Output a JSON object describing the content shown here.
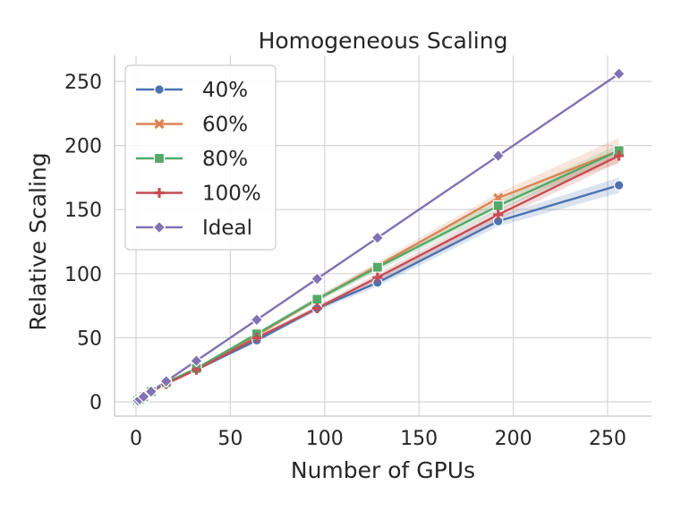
{
  "chart_data": {
    "type": "line",
    "title": "Homogeneous Scaling",
    "xlabel": "Number of GPUs",
    "ylabel": "Relative Scaling",
    "xlim": [
      -6,
      266
    ],
    "ylim": [
      -12,
      270
    ],
    "xticks": [
      0,
      50,
      100,
      150,
      200,
      250
    ],
    "yticks": [
      0,
      50,
      100,
      150,
      200,
      250
    ],
    "grid": true,
    "legend_position": "top-left",
    "series": [
      {
        "name": "40%",
        "color": "#4c72b0",
        "marker": "circle",
        "x": [
          1,
          2,
          4,
          8,
          16,
          32,
          64,
          96,
          128,
          192,
          256
        ],
        "values": [
          1,
          2,
          4,
          8,
          15,
          25,
          48,
          73,
          93,
          141,
          169
        ],
        "ci": [
          0,
          0,
          0,
          0.3,
          0.5,
          1,
          1.5,
          2,
          3,
          4,
          6
        ]
      },
      {
        "name": "60%",
        "color": "#dd8452",
        "marker": "x",
        "x": [
          1,
          2,
          4,
          8,
          16,
          32,
          64,
          96,
          128,
          192,
          256
        ],
        "values": [
          1,
          2,
          4,
          8,
          15,
          26,
          52,
          80,
          106,
          159,
          196
        ],
        "ci": [
          0,
          0,
          0,
          0.3,
          0.5,
          1,
          1.5,
          2,
          3,
          4,
          10
        ]
      },
      {
        "name": "80%",
        "color": "#55a868",
        "marker": "square",
        "x": [
          1,
          2,
          4,
          8,
          16,
          32,
          64,
          96,
          128,
          192,
          256
        ],
        "values": [
          1,
          2,
          4,
          8,
          15,
          26,
          53,
          80,
          105,
          153,
          196
        ],
        "ci": [
          0,
          0,
          0,
          0.3,
          0.5,
          1,
          1.5,
          2,
          3,
          4,
          5
        ]
      },
      {
        "name": "100%",
        "color": "#c44e52",
        "marker": "plus",
        "x": [
          1,
          2,
          4,
          8,
          16,
          32,
          64,
          96,
          128,
          192,
          256
        ],
        "values": [
          1,
          2,
          4,
          8,
          14,
          25,
          50,
          73,
          97,
          146,
          192
        ],
        "ci": [
          0,
          0,
          0,
          0.3,
          0.5,
          1,
          1.5,
          2,
          3,
          4,
          5
        ]
      },
      {
        "name": "Ideal",
        "color": "#8172b3",
        "marker": "diamond",
        "x": [
          1,
          2,
          4,
          8,
          16,
          32,
          64,
          96,
          128,
          192,
          256
        ],
        "values": [
          1,
          2,
          4,
          8,
          16,
          32,
          64,
          96,
          128,
          192,
          256
        ],
        "ci": [
          0,
          0,
          0,
          0,
          0,
          0,
          0,
          0,
          0,
          0,
          0
        ]
      }
    ]
  }
}
